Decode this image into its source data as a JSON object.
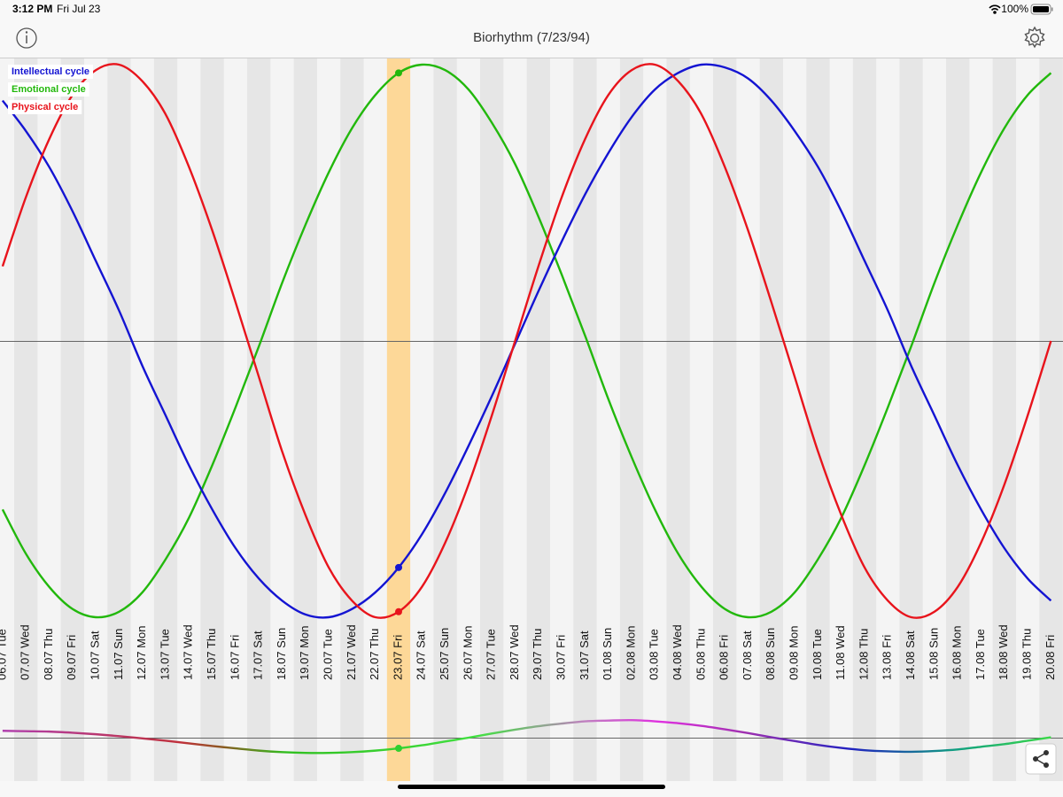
{
  "status_bar": {
    "time": "3:12 PM",
    "date": "Fri Jul 23",
    "battery": "100%"
  },
  "nav": {
    "title": "Biorhythm (7/23/94)"
  },
  "chart_data": {
    "type": "line",
    "categories": [
      "06.07 Tue",
      "07.07 Wed",
      "08.07 Thu",
      "09.07 Fri",
      "10.07 Sat",
      "11.07 Sun",
      "12.07 Mon",
      "13.07 Tue",
      "14.07 Wed",
      "15.07 Thu",
      "16.07 Fri",
      "17.07 Sat",
      "18.07 Sun",
      "19.07 Mon",
      "20.07 Tue",
      "21.07 Wed",
      "22.07 Thu",
      "23.07 Fri",
      "24.07 Sat",
      "25.07 Sun",
      "26.07 Mon",
      "27.07 Tue",
      "28.07 Wed",
      "29.07 Thu",
      "30.07 Fri",
      "31.07 Sat",
      "01.08 Sun",
      "02.08 Mon",
      "03.08 Tue",
      "04.08 Wed",
      "05.08 Thu",
      "06.08 Fri",
      "07.08 Sat",
      "08.08 Sun",
      "09.08 Mon",
      "10.08 Tue",
      "11.08 Wed",
      "12.08 Thu",
      "13.08 Fri",
      "14.08 Sat",
      "15.08 Sun",
      "16.08 Mon",
      "17.08 Tue",
      "18.08 Wed",
      "19.08 Thu",
      "20.08 Fri"
    ],
    "series": [
      {
        "name": "Intellectual cycle",
        "color": "#1414d2",
        "values": [
          0.87,
          0.76,
          0.63,
          0.47,
          0.29,
          0.11,
          -0.09,
          -0.27,
          -0.45,
          -0.61,
          -0.75,
          -0.86,
          -0.94,
          -0.99,
          -1.0,
          -0.97,
          -0.91,
          -0.82,
          -0.7,
          -0.55,
          -0.38,
          -0.2,
          -0.01,
          0.18,
          0.36,
          0.53,
          0.68,
          0.81,
          0.91,
          0.97,
          1.0,
          0.99,
          0.95,
          0.87,
          0.76,
          0.63,
          0.47,
          0.29,
          0.11,
          -0.09,
          -0.27,
          -0.45,
          -0.61,
          -0.75,
          -0.86,
          -0.94
        ]
      },
      {
        "name": "Emotional cycle",
        "color": "#22b80c",
        "values": [
          -0.61,
          -0.77,
          -0.89,
          -0.97,
          -1.0,
          -0.98,
          -0.91,
          -0.79,
          -0.64,
          -0.45,
          -0.24,
          -0.02,
          0.21,
          0.42,
          0.61,
          0.77,
          0.89,
          0.97,
          1.0,
          0.98,
          0.91,
          0.79,
          0.64,
          0.45,
          0.24,
          0.02,
          -0.21,
          -0.42,
          -0.61,
          -0.77,
          -0.89,
          -0.97,
          -1.0,
          -0.98,
          -0.91,
          -0.79,
          -0.64,
          -0.45,
          -0.24,
          -0.02,
          0.21,
          0.42,
          0.61,
          0.77,
          0.89,
          0.97
        ]
      },
      {
        "name": "Physical cycle",
        "color": "#e8141c",
        "values": [
          0.27,
          0.52,
          0.73,
          0.89,
          0.98,
          1.0,
          0.94,
          0.82,
          0.63,
          0.4,
          0.14,
          -0.13,
          -0.4,
          -0.63,
          -0.82,
          -0.94,
          -1.0,
          -0.98,
          -0.89,
          -0.73,
          -0.52,
          -0.27,
          0.0,
          0.27,
          0.52,
          0.73,
          0.89,
          0.98,
          1.0,
          0.94,
          0.82,
          0.63,
          0.4,
          0.14,
          -0.13,
          -0.4,
          -0.63,
          -0.82,
          -0.94,
          -1.0,
          -0.98,
          -0.89,
          -0.73,
          -0.52,
          -0.27,
          0.0
        ]
      }
    ],
    "ylim": [
      -1,
      1
    ],
    "highlight": 17
  },
  "summary": {
    "values": [
      0.18,
      0.17,
      0.16,
      0.13,
      0.09,
      0.04,
      -0.02,
      -0.08,
      -0.15,
      -0.22,
      -0.28,
      -0.34,
      -0.38,
      -0.4,
      -0.4,
      -0.38,
      -0.34,
      -0.28,
      -0.2,
      -0.1,
      0.0,
      0.11,
      0.21,
      0.3,
      0.37,
      0.43,
      0.45,
      0.46,
      0.43,
      0.38,
      0.31,
      0.22,
      0.12,
      0.01,
      -0.09,
      -0.19,
      -0.27,
      -0.33,
      -0.36,
      -0.37,
      -0.35,
      -0.31,
      -0.24,
      -0.17,
      -0.08,
      0.01
    ],
    "ylim": [
      -1,
      1
    ]
  }
}
